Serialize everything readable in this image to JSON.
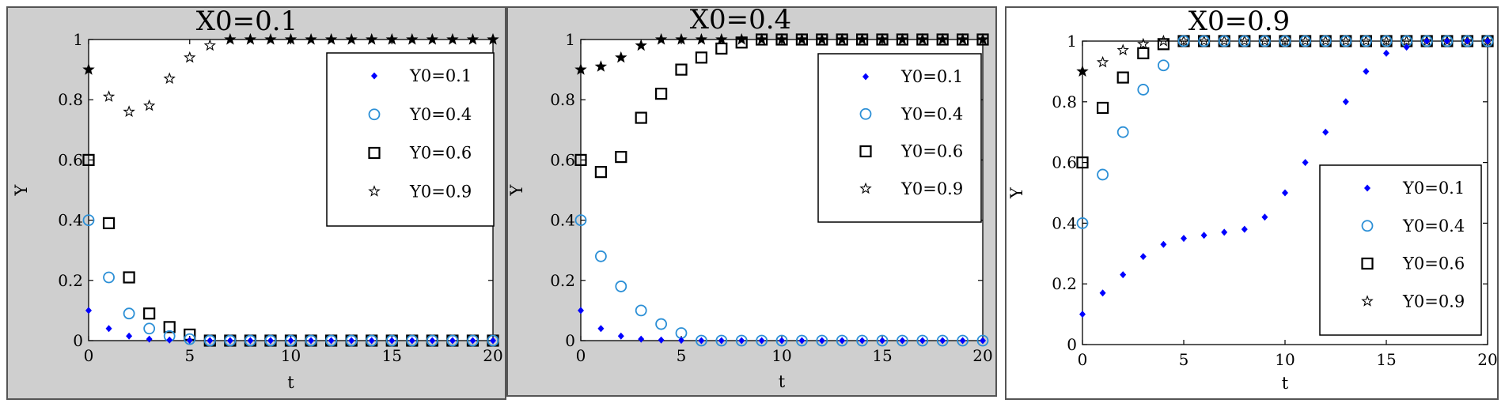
{
  "chart_data": [
    {
      "type": "scatter",
      "title": "X0=0.1",
      "xlabel": "t",
      "ylabel": "Y",
      "xlim": [
        0,
        20
      ],
      "ylim": [
        0,
        1
      ],
      "xticks": [
        "0",
        "5",
        "10",
        "15",
        "20"
      ],
      "yticks": [
        "0",
        "0.2",
        "0.4",
        "0.6",
        "0.8",
        "1"
      ],
      "legend_position": "top-right",
      "grid": false,
      "background": "#cfcfcf",
      "series": [
        {
          "name": "Y0=0.1",
          "marker": "diamond",
          "color": "#0000ff",
          "x": [
            0,
            1,
            2,
            3,
            4,
            5,
            6,
            7,
            8,
            9,
            10,
            11,
            12,
            13,
            14,
            15,
            16,
            17,
            18,
            19,
            20
          ],
          "y": [
            0.1,
            0.04,
            0.015,
            0.005,
            0.002,
            0.001,
            0,
            0,
            0,
            0,
            0,
            0,
            0,
            0,
            0,
            0,
            0,
            0,
            0,
            0,
            0
          ]
        },
        {
          "name": "Y0=0.4",
          "marker": "circle",
          "color": "#2b8fd6",
          "x": [
            0,
            1,
            2,
            3,
            4,
            5,
            6,
            7,
            8,
            9,
            10,
            11,
            12,
            13,
            14,
            15,
            16,
            17,
            18,
            19,
            20
          ],
          "y": [
            0.4,
            0.21,
            0.09,
            0.04,
            0.015,
            0.005,
            0,
            0,
            0,
            0,
            0,
            0,
            0,
            0,
            0,
            0,
            0,
            0,
            0,
            0,
            0
          ]
        },
        {
          "name": "Y0=0.6",
          "marker": "square",
          "color": "#000000",
          "x": [
            0,
            1,
            2,
            3,
            4,
            5,
            6,
            7,
            8,
            9,
            10,
            11,
            12,
            13,
            14,
            15,
            16,
            17,
            18,
            19,
            20
          ],
          "y": [
            0.6,
            0.39,
            0.21,
            0.09,
            0.045,
            0.02,
            0,
            0,
            0,
            0,
            0,
            0,
            0,
            0,
            0,
            0,
            0,
            0,
            0,
            0,
            0
          ]
        },
        {
          "name": "Y0=0.9",
          "marker": "star",
          "color": "#000000",
          "x": [
            0,
            1,
            2,
            3,
            4,
            5,
            6,
            7,
            8,
            9,
            10,
            11,
            12,
            13,
            14,
            15,
            16,
            17,
            18,
            19,
            20
          ],
          "y": [
            0.9,
            0.81,
            0.76,
            0.78,
            0.87,
            0.94,
            0.98,
            1,
            1,
            1,
            1,
            1,
            1,
            1,
            1,
            1,
            1,
            1,
            1,
            1,
            1
          ]
        }
      ]
    },
    {
      "type": "scatter",
      "title": "X0=0.4",
      "xlabel": "t",
      "ylabel": "Y",
      "xlim": [
        0,
        20
      ],
      "ylim": [
        0,
        1
      ],
      "xticks": [
        "0",
        "5",
        "10",
        "15",
        "20"
      ],
      "yticks": [
        "0",
        "0.2",
        "0.4",
        "0.6",
        "0.8",
        "1"
      ],
      "legend_position": "top-right",
      "grid": false,
      "background": "#cfcfcf",
      "series": [
        {
          "name": "Y0=0.1",
          "marker": "diamond",
          "color": "#0000ff",
          "x": [
            0,
            1,
            2,
            3,
            4,
            5,
            6,
            7,
            8,
            9,
            10,
            11,
            12,
            13,
            14,
            15,
            16,
            17,
            18,
            19,
            20
          ],
          "y": [
            0.1,
            0.04,
            0.015,
            0.005,
            0.002,
            0.001,
            0,
            0,
            0,
            0,
            0,
            0,
            0,
            0,
            0,
            0,
            0,
            0,
            0,
            0,
            0
          ]
        },
        {
          "name": "Y0=0.4",
          "marker": "circle",
          "color": "#2b8fd6",
          "x": [
            0,
            1,
            2,
            3,
            4,
            5,
            6,
            7,
            8,
            9,
            10,
            11,
            12,
            13,
            14,
            15,
            16,
            17,
            18,
            19,
            20
          ],
          "y": [
            0.4,
            0.28,
            0.18,
            0.1,
            0.055,
            0.025,
            0,
            0,
            0,
            0,
            0,
            0,
            0,
            0,
            0,
            0,
            0,
            0,
            0,
            0,
            0
          ]
        },
        {
          "name": "Y0=0.6",
          "marker": "square",
          "color": "#000000",
          "x": [
            0,
            1,
            2,
            3,
            4,
            5,
            6,
            7,
            8,
            9,
            10,
            11,
            12,
            13,
            14,
            15,
            16,
            17,
            18,
            19,
            20
          ],
          "y": [
            0.6,
            0.56,
            0.61,
            0.74,
            0.82,
            0.9,
            0.94,
            0.97,
            0.99,
            1,
            1,
            1,
            1,
            1,
            1,
            1,
            1,
            1,
            1,
            1,
            1
          ]
        },
        {
          "name": "Y0=0.9",
          "marker": "star",
          "color": "#000000",
          "x": [
            0,
            1,
            2,
            3,
            4,
            5,
            6,
            7,
            8,
            9,
            10,
            11,
            12,
            13,
            14,
            15,
            16,
            17,
            18,
            19,
            20
          ],
          "y": [
            0.9,
            0.91,
            0.94,
            0.98,
            1,
            1,
            1,
            1,
            1,
            1,
            1,
            1,
            1,
            1,
            1,
            1,
            1,
            1,
            1,
            1,
            1
          ]
        }
      ]
    },
    {
      "type": "scatter",
      "title": "X0=0.9",
      "xlabel": "t",
      "ylabel": "Y",
      "xlim": [
        0,
        20
      ],
      "ylim": [
        0,
        1
      ],
      "xticks": [
        "0",
        "5",
        "10",
        "15",
        "20"
      ],
      "yticks": [
        "0",
        "0.2",
        "0.4",
        "0.6",
        "0.8",
        "1"
      ],
      "legend_position": "center-right",
      "grid": false,
      "background": "#ffffff",
      "series": [
        {
          "name": "Y0=0.1",
          "marker": "diamond",
          "color": "#0000ff",
          "x": [
            0,
            1,
            2,
            3,
            4,
            5,
            6,
            7,
            8,
            9,
            10,
            11,
            12,
            13,
            14,
            15,
            16,
            17,
            18,
            19,
            20
          ],
          "y": [
            0.1,
            0.17,
            0.23,
            0.29,
            0.33,
            0.35,
            0.36,
            0.37,
            0.38,
            0.42,
            0.5,
            0.6,
            0.7,
            0.8,
            0.9,
            0.96,
            0.98,
            1,
            1,
            1,
            1
          ]
        },
        {
          "name": "Y0=0.4",
          "marker": "circle",
          "color": "#2b8fd6",
          "x": [
            0,
            1,
            2,
            3,
            4,
            5,
            6,
            7,
            8,
            9,
            10,
            11,
            12,
            13,
            14,
            15,
            16,
            17,
            18,
            19,
            20
          ],
          "y": [
            0.4,
            0.56,
            0.7,
            0.84,
            0.92,
            1,
            1,
            1,
            1,
            1,
            1,
            1,
            1,
            1,
            1,
            1,
            1,
            1,
            1,
            1,
            1
          ]
        },
        {
          "name": "Y0=0.6",
          "marker": "square",
          "color": "#000000",
          "x": [
            0,
            1,
            2,
            3,
            4,
            5,
            6,
            7,
            8,
            9,
            10,
            11,
            12,
            13,
            14,
            15,
            16,
            17,
            18,
            19,
            20
          ],
          "y": [
            0.6,
            0.78,
            0.88,
            0.96,
            0.99,
            1,
            1,
            1,
            1,
            1,
            1,
            1,
            1,
            1,
            1,
            1,
            1,
            1,
            1,
            1,
            1
          ]
        },
        {
          "name": "Y0=0.9",
          "marker": "star",
          "color": "#000000",
          "x": [
            0,
            1,
            2,
            3,
            4,
            5,
            6,
            7,
            8,
            9,
            10,
            11,
            12,
            13,
            14,
            15,
            16,
            17,
            18,
            19,
            20
          ],
          "y": [
            0.9,
            0.93,
            0.97,
            0.99,
            1,
            1,
            1,
            1,
            1,
            1,
            1,
            1,
            1,
            1,
            1,
            1,
            1,
            1,
            1,
            1,
            1
          ]
        }
      ]
    }
  ]
}
